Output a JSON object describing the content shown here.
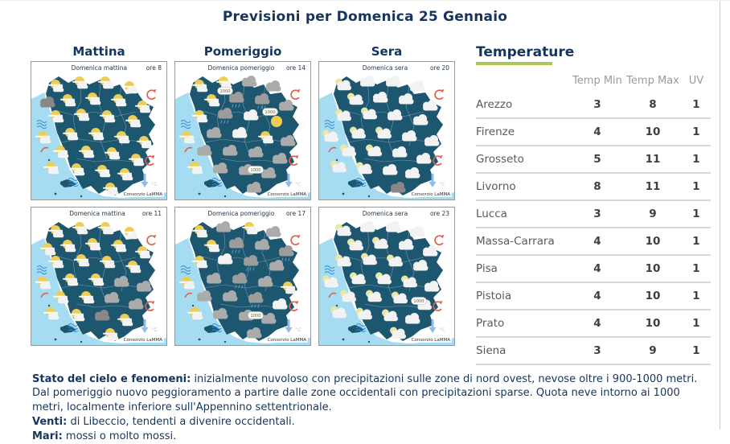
{
  "page": {
    "title": "Previsioni per Domenica 25 Gennaio"
  },
  "colors": {
    "heading_navy": "#16355e",
    "accent_green": "#a9c75b",
    "map_land": "#1d566f",
    "map_sea": "#a6dcf2",
    "table_divider": "#d8d8d8",
    "wind_red": "#e0604f",
    "trend_blue": "#8fbce8"
  },
  "maps": {
    "column_headers": [
      "Mattina",
      "Pomeriggio",
      "Sera"
    ],
    "credit": "Consorzio LaMMA",
    "temp_unit": "°C",
    "icon_types": {
      "sc": "sun-with-cloud",
      "s": "sun",
      "cw": "white-cloud",
      "cg": "gray-cloud",
      "dk": "dark-cloud",
      "r": "rain-cloud",
      "mc": "moon-with-cloud"
    },
    "items": [
      {
        "title": "Domenica mattina",
        "time": "ore 8",
        "icons": [
          [
            30,
            30,
            "sc"
          ],
          [
            60,
            26,
            "sc"
          ],
          [
            92,
            26,
            "sc"
          ],
          [
            122,
            32,
            "sc"
          ],
          [
            45,
            48,
            "sc"
          ],
          [
            76,
            46,
            "sc"
          ],
          [
            108,
            48,
            "sc"
          ],
          [
            138,
            56,
            "sc"
          ],
          [
            30,
            68,
            "sc"
          ],
          [
            62,
            66,
            "sc"
          ],
          [
            94,
            68,
            "sc"
          ],
          [
            126,
            74,
            "sc"
          ],
          [
            48,
            90,
            "sc"
          ],
          [
            80,
            90,
            "sc"
          ],
          [
            112,
            94,
            "sc"
          ],
          [
            140,
            100,
            "sc"
          ],
          [
            36,
            112,
            "sc"
          ],
          [
            68,
            112,
            "sc"
          ],
          [
            100,
            114,
            "sc"
          ],
          [
            130,
            122,
            "sc"
          ],
          [
            56,
            134,
            "sc"
          ],
          [
            88,
            136,
            "sc"
          ],
          [
            116,
            140,
            "sc"
          ],
          [
            98,
            158,
            "sc"
          ],
          [
            20,
            52,
            "dk"
          ],
          [
            14,
            94,
            "sc"
          ],
          [
            24,
            132,
            "sc"
          ]
        ],
        "badges": []
      },
      {
        "title": "Domenica pomeriggio",
        "time": "ore 14",
        "icons": [
          [
            30,
            30,
            "sc"
          ],
          [
            60,
            26,
            "sc"
          ],
          [
            92,
            26,
            "cg"
          ],
          [
            122,
            32,
            "cg"
          ],
          [
            45,
            48,
            "sc"
          ],
          [
            76,
            46,
            "r"
          ],
          [
            108,
            48,
            "r"
          ],
          [
            138,
            56,
            "cg"
          ],
          [
            30,
            68,
            "sc"
          ],
          [
            62,
            66,
            "r"
          ],
          [
            94,
            68,
            "cw"
          ],
          [
            126,
            74,
            "s"
          ],
          [
            48,
            90,
            "cg"
          ],
          [
            80,
            90,
            "cw"
          ],
          [
            112,
            94,
            "sc"
          ],
          [
            140,
            100,
            "cg"
          ],
          [
            36,
            112,
            "cg"
          ],
          [
            68,
            112,
            "cg"
          ],
          [
            100,
            114,
            "cg"
          ],
          [
            130,
            122,
            "cg"
          ],
          [
            56,
            134,
            "cg"
          ],
          [
            88,
            136,
            "cg"
          ],
          [
            116,
            140,
            "cg"
          ],
          [
            98,
            158,
            "cg"
          ],
          [
            14,
            94,
            "sc"
          ],
          [
            24,
            132,
            "sc"
          ]
        ],
        "badges": [
          [
            62,
            36,
            "1000"
          ],
          [
            118,
            62,
            "1000"
          ],
          [
            100,
            134,
            "1000"
          ]
        ]
      },
      {
        "title": "Domenica sera",
        "time": "ore 20",
        "icons": [
          [
            30,
            30,
            "mc"
          ],
          [
            60,
            26,
            "cw"
          ],
          [
            92,
            26,
            "cw"
          ],
          [
            122,
            32,
            "cw"
          ],
          [
            45,
            48,
            "mc"
          ],
          [
            76,
            46,
            "cw"
          ],
          [
            108,
            48,
            "cw"
          ],
          [
            138,
            56,
            "cw"
          ],
          [
            30,
            68,
            "mc"
          ],
          [
            62,
            66,
            "mc"
          ],
          [
            94,
            68,
            "cw"
          ],
          [
            126,
            74,
            "cw"
          ],
          [
            48,
            90,
            "mc"
          ],
          [
            80,
            90,
            "mc"
          ],
          [
            112,
            94,
            "cw"
          ],
          [
            140,
            100,
            "cw"
          ],
          [
            36,
            112,
            "mc"
          ],
          [
            68,
            112,
            "mc"
          ],
          [
            100,
            114,
            "cw"
          ],
          [
            130,
            122,
            "cw"
          ],
          [
            56,
            134,
            "mc"
          ],
          [
            88,
            136,
            "cw"
          ],
          [
            116,
            140,
            "cw"
          ],
          [
            98,
            158,
            "dk"
          ],
          [
            14,
            94,
            "mc"
          ],
          [
            24,
            132,
            "mc"
          ]
        ],
        "badges": []
      },
      {
        "title": "Domenica mattina",
        "time": "ore 11",
        "icons": [
          [
            30,
            30,
            "sc"
          ],
          [
            60,
            26,
            "sc"
          ],
          [
            92,
            26,
            "sc"
          ],
          [
            122,
            32,
            "sc"
          ],
          [
            45,
            48,
            "sc"
          ],
          [
            76,
            46,
            "sc"
          ],
          [
            108,
            48,
            "sc"
          ],
          [
            138,
            56,
            "sc"
          ],
          [
            30,
            68,
            "sc"
          ],
          [
            62,
            66,
            "sc"
          ],
          [
            94,
            68,
            "sc"
          ],
          [
            126,
            74,
            "sc"
          ],
          [
            48,
            90,
            "sc"
          ],
          [
            80,
            90,
            "sc"
          ],
          [
            112,
            94,
            "cg"
          ],
          [
            140,
            100,
            "cg"
          ],
          [
            36,
            112,
            "sc"
          ],
          [
            68,
            112,
            "sc"
          ],
          [
            100,
            114,
            "cg"
          ],
          [
            130,
            122,
            "cg"
          ],
          [
            56,
            134,
            "sc"
          ],
          [
            88,
            136,
            "dk"
          ],
          [
            116,
            140,
            "sc"
          ],
          [
            98,
            158,
            "sc"
          ],
          [
            20,
            52,
            "sc"
          ],
          [
            14,
            94,
            "sc"
          ],
          [
            24,
            132,
            "sc"
          ]
        ],
        "badges": []
      },
      {
        "title": "Domenica pomeriggio",
        "time": "ore 17",
        "icons": [
          [
            30,
            30,
            "sc"
          ],
          [
            60,
            26,
            "cg"
          ],
          [
            92,
            26,
            "sc"
          ],
          [
            122,
            32,
            "cg"
          ],
          [
            45,
            48,
            "sc"
          ],
          [
            76,
            46,
            "r"
          ],
          [
            108,
            48,
            "cg"
          ],
          [
            138,
            56,
            "r"
          ],
          [
            30,
            68,
            "sc"
          ],
          [
            62,
            66,
            "cw"
          ],
          [
            94,
            68,
            "r"
          ],
          [
            126,
            74,
            "cg"
          ],
          [
            48,
            90,
            "cg"
          ],
          [
            80,
            90,
            "r"
          ],
          [
            112,
            94,
            "cg"
          ],
          [
            140,
            100,
            "sc"
          ],
          [
            36,
            112,
            "cg"
          ],
          [
            68,
            112,
            "cg"
          ],
          [
            100,
            114,
            "r"
          ],
          [
            130,
            122,
            "cw"
          ],
          [
            56,
            134,
            "cg"
          ],
          [
            88,
            136,
            "cg"
          ],
          [
            116,
            140,
            "cg"
          ],
          [
            98,
            158,
            "cg"
          ],
          [
            14,
            94,
            "sc"
          ],
          [
            24,
            132,
            "sc"
          ]
        ],
        "badges": [
          [
            100,
            134,
            "1000"
          ]
        ]
      },
      {
        "title": "Domenica sera",
        "time": "ore 23",
        "icons": [
          [
            30,
            30,
            "mc"
          ],
          [
            60,
            26,
            "cw"
          ],
          [
            92,
            26,
            "cw"
          ],
          [
            122,
            32,
            "cw"
          ],
          [
            45,
            48,
            "mc"
          ],
          [
            76,
            46,
            "mc"
          ],
          [
            108,
            48,
            "cw"
          ],
          [
            138,
            56,
            "cw"
          ],
          [
            30,
            68,
            "mc"
          ],
          [
            62,
            66,
            "mc"
          ],
          [
            94,
            68,
            "mc"
          ],
          [
            126,
            74,
            "cw"
          ],
          [
            48,
            90,
            "mc"
          ],
          [
            80,
            90,
            "mc"
          ],
          [
            112,
            94,
            "mc"
          ],
          [
            140,
            100,
            "cw"
          ],
          [
            36,
            112,
            "mc"
          ],
          [
            68,
            112,
            "mc"
          ],
          [
            100,
            114,
            "mc"
          ],
          [
            130,
            122,
            "mc"
          ],
          [
            56,
            134,
            "mc"
          ],
          [
            88,
            136,
            "mc"
          ],
          [
            116,
            140,
            "cw"
          ],
          [
            98,
            158,
            "mc"
          ],
          [
            14,
            94,
            "mc"
          ],
          [
            24,
            132,
            "mc"
          ]
        ],
        "badges": [
          [
            124,
            116,
            "1000"
          ]
        ]
      }
    ]
  },
  "temperatures": {
    "heading": "Temperature",
    "columns": [
      "Temp Min",
      "Temp Max",
      "UV"
    ],
    "rows": [
      [
        "Arezzo",
        3,
        8,
        1
      ],
      [
        "Firenze",
        4,
        10,
        1
      ],
      [
        "Grosseto",
        5,
        11,
        1
      ],
      [
        "Livorno",
        8,
        11,
        1
      ],
      [
        "Lucca",
        3,
        9,
        1
      ],
      [
        "Massa-Carrara",
        4,
        10,
        1
      ],
      [
        "Pisa",
        4,
        10,
        1
      ],
      [
        "Pistoia",
        4,
        10,
        1
      ],
      [
        "Prato",
        4,
        10,
        1
      ],
      [
        "Siena",
        3,
        9,
        1
      ]
    ]
  },
  "forecast": {
    "sections": [
      {
        "label": "Stato del cielo e fenomeni:",
        "text": "inizialmente nuvoloso con precipitazioni sulle zone di nord ovest, nevose oltre i 900-1000 metri. Dal pomeriggio nuovo peggioramento a partire dalle zone occidentali con precipitazioni sparse. Quota neve intorno ai 1000 metri, localmente inferiore sull'Appennino settentrionale."
      },
      {
        "label": "Venti:",
        "text": "di Libeccio, tendenti a divenire occidentali."
      },
      {
        "label": "Mari:",
        "text": "mossi o molto mossi."
      }
    ]
  }
}
